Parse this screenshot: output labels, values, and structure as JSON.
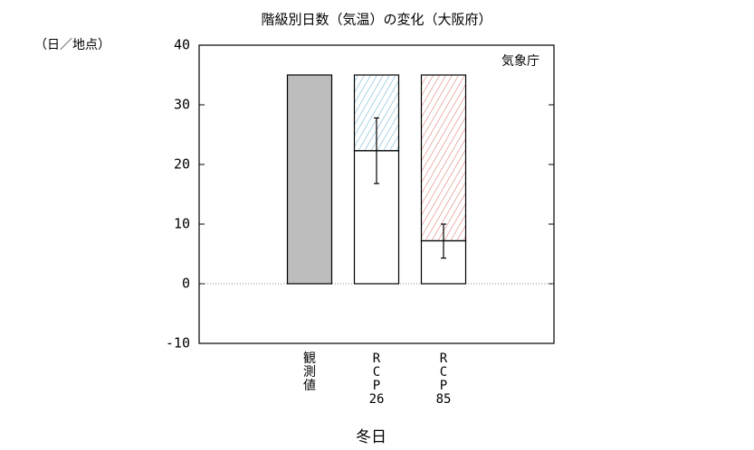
{
  "chart_data": {
    "type": "bar",
    "title": "階級別日数（気温）の変化（大阪府）",
    "y_unit": "（日／地点）",
    "x_label": "冬日",
    "source": "気象庁",
    "categories": [
      [
        "観",
        "測",
        "値"
      ],
      [
        "R",
        "C",
        "P",
        "26"
      ],
      [
        "R",
        "C",
        "P",
        "85"
      ]
    ],
    "stacked": true,
    "series": [
      {
        "color": "#bdbdbd",
        "values": [
          35,
          null,
          null
        ]
      },
      {
        "color": "#ffffff",
        "values": [
          null,
          22.3,
          7.2
        ],
        "error_low": [
          null,
          16.8,
          4.3
        ],
        "error_high": [
          null,
          27.8,
          10
        ]
      },
      {
        "hatch": true,
        "colors": [
          null,
          "#5aa9c9",
          "#d46a5e"
        ],
        "values": [
          null,
          12.7,
          27.8
        ]
      }
    ],
    "ylim": [
      -10,
      40
    ],
    "yticks": [
      -10,
      0,
      10,
      20,
      30,
      40
    ],
    "zero_line": true
  }
}
